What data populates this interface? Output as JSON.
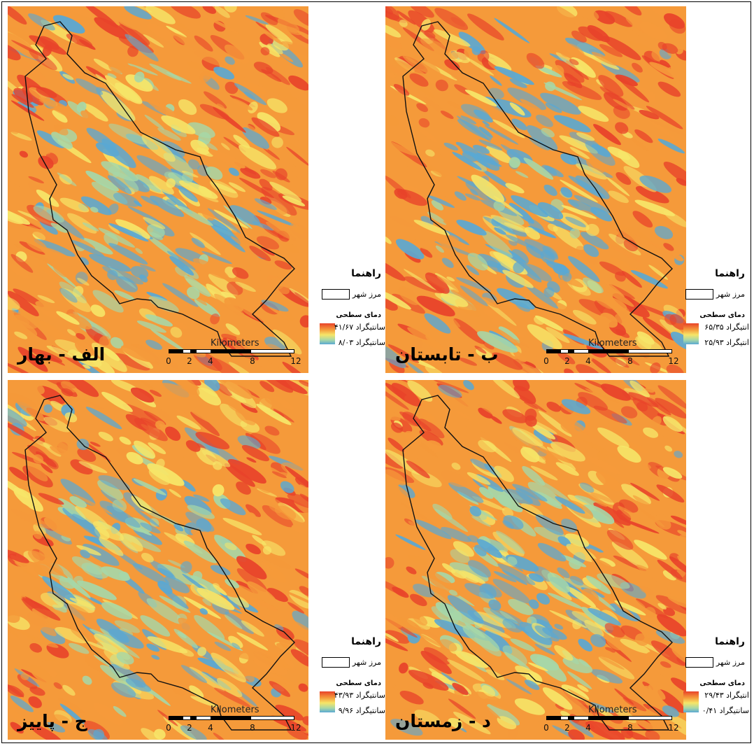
{
  "legend": {
    "title": "راهنما",
    "boundary_label": "مرز شهر",
    "lst_title": "دمای سطحی"
  },
  "scalebar": {
    "unit": "Kilometers",
    "ticks": [
      "0",
      "2",
      "4",
      "8",
      "12"
    ]
  },
  "colors": {
    "hot": "#e8432a",
    "warm": "#f59a3a",
    "mid": "#f6e568",
    "cool": "#a6d7a8",
    "cold": "#5aa8d3",
    "boundary": "#111111"
  },
  "panels": [
    {
      "season": "الف - بهار",
      "max_label": "سانتیگراد ۴۱/۶۷",
      "min_label": "سانتیگراد ۸/۰۳"
    },
    {
      "season": "ب - تابستان",
      "max_label": "انتیگراد ۶۵/۳۵",
      "min_label": "انتیگراد ۲۵/۹۳"
    },
    {
      "season": "ج - پاییز",
      "max_label": "سانتیگراد ۴۳/۹۳",
      "min_label": "سانتیگراد ۹/۹۶"
    },
    {
      "season": "د - زمستان",
      "max_label": "انتیگراد ۲۹/۴۳",
      "min_label": "سانتیگراد ۰/۴۱"
    }
  ]
}
